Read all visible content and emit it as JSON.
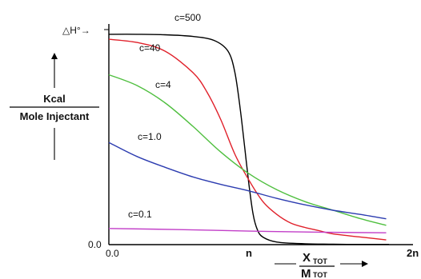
{
  "chart_data": {
    "type": "line",
    "y_axis_top_label": "△H°→",
    "ylabel_numerator": "Kcal",
    "ylabel_denominator": "Mole Injectant",
    "xlabel_numerator": "X",
    "xlabel_numerator_sub": "TOT",
    "xlabel_denominator": "M",
    "xlabel_denominator_sub": "TOT",
    "x_tick_labels": {
      "zero": "0.0",
      "mid": "n",
      "end": "2n"
    },
    "y_tick_labels": {
      "zero": "0.0"
    },
    "xlim": [
      0,
      2
    ],
    "ylim": [
      0,
      1
    ],
    "grid": false,
    "series": [
      {
        "name": "c=500",
        "color": "#000000",
        "x": [
          0,
          0.2,
          0.4,
          0.6,
          0.75,
          0.85,
          0.9,
          0.94,
          0.97,
          1.0,
          1.03,
          1.06,
          1.1,
          1.2,
          1.4,
          1.6,
          1.8,
          2.0
        ],
        "y": [
          0.978,
          0.978,
          0.976,
          0.968,
          0.95,
          0.9,
          0.8,
          0.62,
          0.45,
          0.28,
          0.14,
          0.07,
          0.035,
          0.012,
          0.004,
          0.002,
          0.001,
          0.001
        ]
      },
      {
        "name": "c=40",
        "color": "#e0202a",
        "x": [
          0,
          0.2,
          0.4,
          0.6,
          0.7,
          0.8,
          0.9,
          1.0,
          1.1,
          1.2,
          1.3,
          1.4,
          1.5,
          1.6,
          1.8,
          1.98
        ],
        "y": [
          0.955,
          0.94,
          0.9,
          0.8,
          0.71,
          0.58,
          0.42,
          0.3,
          0.2,
          0.14,
          0.1,
          0.08,
          0.065,
          0.05,
          0.035,
          0.022
        ]
      },
      {
        "name": "c=4",
        "color": "#4fbf3f",
        "x": [
          0,
          0.2,
          0.4,
          0.6,
          0.8,
          1.0,
          1.2,
          1.4,
          1.6,
          1.8,
          1.98
        ],
        "y": [
          0.79,
          0.74,
          0.66,
          0.55,
          0.43,
          0.33,
          0.255,
          0.2,
          0.16,
          0.12,
          0.09
        ]
      },
      {
        "name": "c=1.0",
        "color": "#2c3cb0",
        "x": [
          0,
          0.2,
          0.4,
          0.6,
          0.8,
          1.0,
          1.2,
          1.4,
          1.6,
          1.8,
          1.98
        ],
        "y": [
          0.475,
          0.41,
          0.36,
          0.315,
          0.28,
          0.25,
          0.215,
          0.185,
          0.16,
          0.14,
          0.12
        ]
      },
      {
        "name": "c=0.1",
        "color": "#c23fc8",
        "x": [
          0,
          0.5,
          1.0,
          1.5,
          1.98
        ],
        "y": [
          0.075,
          0.07,
          0.063,
          0.058,
          0.055
        ]
      }
    ]
  }
}
